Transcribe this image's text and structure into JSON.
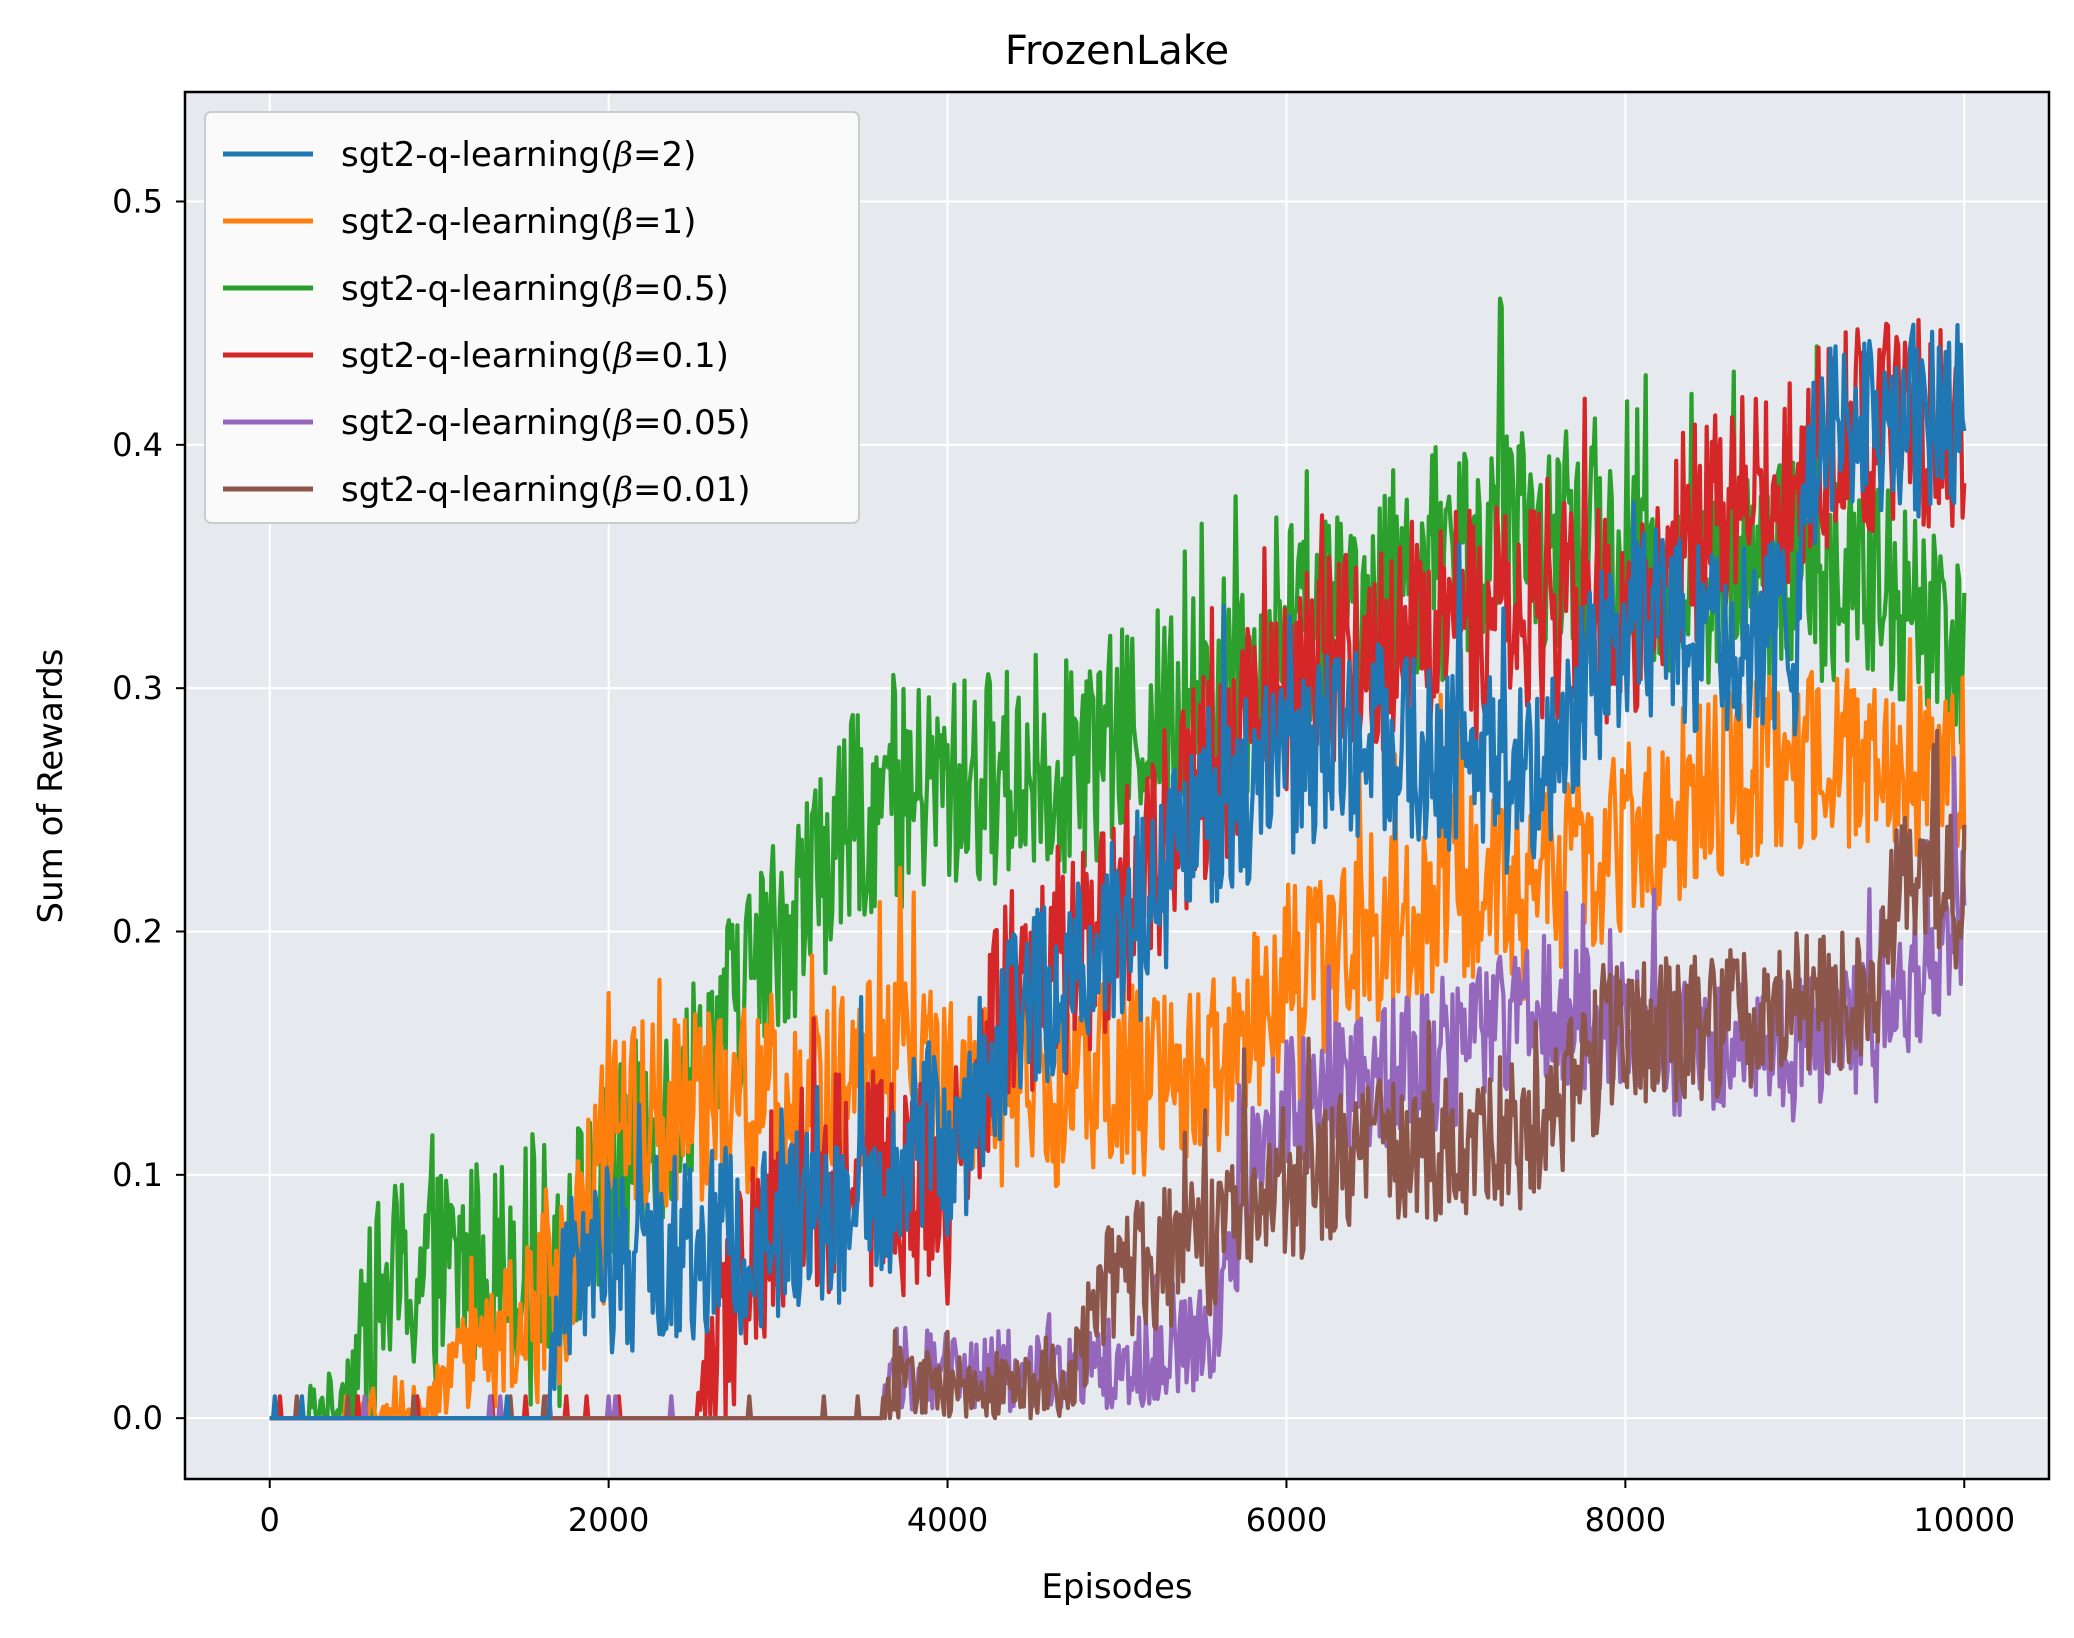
{
  "chart_data": {
    "type": "line",
    "title": "FrozenLake",
    "xlabel": "Episodes",
    "ylabel": "Sum of Rewards",
    "xlim": [
      -500,
      10500
    ],
    "ylim": [
      -0.025,
      0.545
    ],
    "xticks": [
      0,
      2000,
      4000,
      6000,
      8000,
      10000
    ],
    "xtick_labels": [
      "0",
      "2000",
      "4000",
      "6000",
      "8000",
      "10000"
    ],
    "yticks": [
      0.0,
      0.1,
      0.2,
      0.3,
      0.4,
      0.5
    ],
    "ytick_labels": [
      "0.0",
      "0.1",
      "0.2",
      "0.3",
      "0.4",
      "0.5"
    ],
    "grid": true,
    "legend_position": "top-left",
    "x_step": 10,
    "series": [
      {
        "name": "sgt2-q-learning(β=0.5)",
        "legend_prefix": "sgt2-q-learning(",
        "legend_symbol": "β",
        "legend_suffix": "=0.5)",
        "color": "#2ca02c",
        "draw_order": 0,
        "noise": 0.045,
        "trend_x": [
          0,
          400,
          700,
          1700,
          2500,
          3000,
          3500,
          4000,
          4800,
          5500,
          6000,
          6500,
          7000,
          7500,
          8000,
          8500,
          9000,
          9500,
          10000
        ],
        "trend_y": [
          0,
          0.005,
          0.055,
          0.07,
          0.14,
          0.2,
          0.25,
          0.26,
          0.27,
          0.3,
          0.32,
          0.34,
          0.36,
          0.36,
          0.35,
          0.34,
          0.35,
          0.34,
          0.32
        ]
      },
      {
        "name": "sgt2-q-learning(β=1)",
        "legend_prefix": "sgt2-q-learning(",
        "legend_symbol": "β",
        "legend_suffix": "=1)",
        "color": "#ff7f0e",
        "draw_order": 1,
        "noise": 0.04,
        "trend_x": [
          0,
          900,
          1700,
          2000,
          2800,
          3500,
          4000,
          4500,
          5000,
          5500,
          6000,
          6500,
          7000,
          7500,
          8000,
          8500,
          9000,
          9500,
          10000
        ],
        "trend_y": [
          0,
          0.005,
          0.05,
          0.12,
          0.13,
          0.14,
          0.14,
          0.13,
          0.14,
          0.14,
          0.18,
          0.2,
          0.22,
          0.22,
          0.24,
          0.26,
          0.27,
          0.27,
          0.27
        ]
      },
      {
        "name": "sgt2-q-learning(β=0.1)",
        "legend_prefix": "sgt2-q-learning(",
        "legend_symbol": "β",
        "legend_suffix": "=0.1)",
        "color": "#d62728",
        "draw_order": 2,
        "noise": 0.045,
        "trend_x": [
          0,
          2500,
          2700,
          3000,
          3500,
          4000,
          4300,
          4800,
          5500,
          6000,
          6500,
          7000,
          7500,
          8000,
          8500,
          9000,
          9500,
          10000
        ],
        "trend_y": [
          0,
          0,
          0.04,
          0.09,
          0.1,
          0.09,
          0.17,
          0.19,
          0.26,
          0.3,
          0.32,
          0.33,
          0.33,
          0.33,
          0.37,
          0.39,
          0.41,
          0.4
        ]
      },
      {
        "name": "sgt2-q-learning(β=0.05)",
        "legend_prefix": "sgt2-q-learning(",
        "legend_symbol": "β",
        "legend_suffix": "=0.05)",
        "color": "#9467bd",
        "draw_order": 3,
        "noise": 0.03,
        "trend_x": [
          0,
          3600,
          3700,
          4800,
          5500,
          5800,
          6000,
          6500,
          7000,
          7500,
          8000,
          8500,
          9000,
          9500,
          10000
        ],
        "trend_y": [
          0,
          0,
          0.02,
          0.02,
          0.03,
          0.1,
          0.13,
          0.14,
          0.15,
          0.17,
          0.16,
          0.15,
          0.15,
          0.16,
          0.21
        ]
      },
      {
        "name": "sgt2-q-learning(β=0.01)",
        "legend_prefix": "sgt2-q-learning(",
        "legend_symbol": "β",
        "legend_suffix": "=0.01)",
        "color": "#8c564b",
        "draw_order": 4,
        "noise": 0.03,
        "trend_x": [
          0,
          3600,
          3700,
          4700,
          5000,
          5500,
          6000,
          6500,
          7000,
          7500,
          8000,
          8500,
          9000,
          9500,
          9600,
          10000
        ],
        "trend_y": [
          0,
          0,
          0.015,
          0.015,
          0.06,
          0.07,
          0.09,
          0.11,
          0.11,
          0.12,
          0.16,
          0.16,
          0.17,
          0.17,
          0.22,
          0.22
        ]
      },
      {
        "name": "sgt2-q-learning(β=2)",
        "legend_prefix": "sgt2-q-learning(",
        "legend_symbol": "β",
        "legend_suffix": "=2)",
        "color": "#1f77b4",
        "draw_order": 5,
        "noise": 0.04,
        "trend_x": [
          0,
          1650,
          1700,
          2500,
          3000,
          3500,
          4000,
          4500,
          5000,
          5500,
          6000,
          6500,
          7000,
          7500,
          8000,
          8500,
          9000,
          9100,
          9500,
          10000
        ],
        "trend_y": [
          0,
          0.002,
          0.065,
          0.07,
          0.075,
          0.09,
          0.12,
          0.17,
          0.2,
          0.24,
          0.27,
          0.28,
          0.27,
          0.26,
          0.33,
          0.32,
          0.32,
          0.4,
          0.41,
          0.41
        ]
      }
    ],
    "legend_order": [
      5,
      1,
      0,
      2,
      3,
      4
    ]
  }
}
